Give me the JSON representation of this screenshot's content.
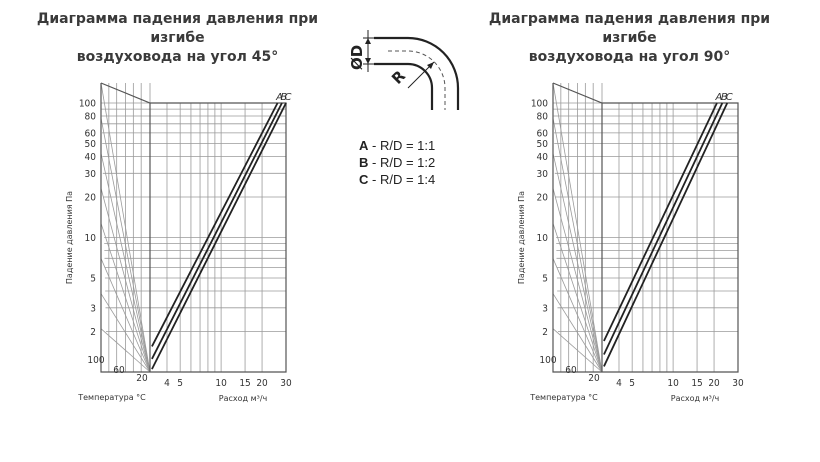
{
  "titles": {
    "left": [
      "Диаграмма падения давления при изгибе",
      "воздуховода на угол 45°"
    ],
    "right": [
      "Диаграмма падения давления при изгибе",
      "воздуховода на угол 90°"
    ]
  },
  "diagram": {
    "d_label": "ØD",
    "r_label": "R"
  },
  "legend": [
    {
      "key": "A",
      "text": " - R/D = 1:1"
    },
    {
      "key": "B",
      "text": " - R/D = 1:2"
    },
    {
      "key": "C",
      "text": " - R/D = 1:4"
    }
  ],
  "chart_data": [
    {
      "type": "line",
      "title": "Диаграмма падения давления при изгибе воздуховода на угол 45°",
      "ylabel": "Падение давления Па",
      "xlabel": "Расход м³/ч",
      "temp_label": "Температура °С",
      "yscale": "log",
      "xscale": "log",
      "ylim": [
        1,
        100
      ],
      "xlim": [
        3,
        30
      ],
      "y_ticks": [
        "100",
        "80",
        "60",
        "50",
        "40",
        "30",
        "20",
        "10",
        "5",
        "3",
        "2"
      ],
      "x_ticks": [
        "4",
        "5",
        "10",
        "15",
        "20",
        "30"
      ],
      "temp_ticks": [
        "100",
        "60",
        "20"
      ],
      "series_labels": [
        "A",
        "B",
        "C"
      ],
      "series": [
        {
          "name": "A",
          "x": [
            3.1,
            26.0
          ],
          "y": [
            1.55,
            100
          ]
        },
        {
          "name": "B",
          "x": [
            3.1,
            28.0
          ],
          "y": [
            1.25,
            100
          ]
        },
        {
          "name": "C",
          "x": [
            3.1,
            30.0
          ],
          "y": [
            1.05,
            100
          ]
        }
      ],
      "grid": true
    },
    {
      "type": "line",
      "title": "Диаграмма падения давления при изгибе воздуховода на угол 90°",
      "ylabel": "Падение давления Па",
      "xlabel": "Расход м³/ч",
      "temp_label": "Температура °С",
      "yscale": "log",
      "xscale": "log",
      "ylim": [
        1,
        100
      ],
      "xlim": [
        3,
        30
      ],
      "y_ticks": [
        "100",
        "80",
        "60",
        "50",
        "40",
        "30",
        "20",
        "10",
        "5",
        "3",
        "2"
      ],
      "x_ticks": [
        "4",
        "5",
        "10",
        "15",
        "20",
        "30"
      ],
      "temp_ticks": [
        "100",
        "60",
        "20"
      ],
      "series_labels": [
        "A",
        "B",
        "C"
      ],
      "series": [
        {
          "name": "A",
          "x": [
            3.1,
            21.0
          ],
          "y": [
            1.7,
            100
          ]
        },
        {
          "name": "B",
          "x": [
            3.1,
            23.0
          ],
          "y": [
            1.35,
            100
          ]
        },
        {
          "name": "C",
          "x": [
            3.1,
            25.0
          ],
          "y": [
            1.1,
            100
          ]
        }
      ],
      "grid": true
    }
  ]
}
